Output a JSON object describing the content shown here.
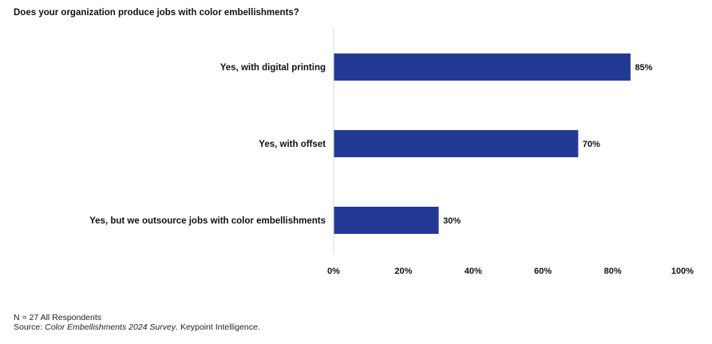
{
  "title": "Does your organization produce jobs with color embellishments?",
  "colors": {
    "bar": "#233A95",
    "axis": "#d9d9d9"
  },
  "chart_data": {
    "type": "bar",
    "orientation": "horizontal",
    "categories": [
      "Yes, with digital printing",
      "Yes, with offset",
      "Yes, but we outsource jobs with color embellishments"
    ],
    "values": [
      85,
      70,
      30
    ],
    "value_labels": [
      "85%",
      "70%",
      "30%"
    ],
    "xlim": [
      0,
      100
    ],
    "x_ticks": [
      0,
      20,
      40,
      60,
      80,
      100
    ],
    "x_tick_labels": [
      "0%",
      "20%",
      "40%",
      "60%",
      "80%",
      "100%"
    ],
    "grid": false,
    "legend": "none"
  },
  "footnote": {
    "n": "N = 27 All Respondents",
    "source_prefix": "Source: ",
    "source_italic": "Color Embellishments 2024 Survey",
    "source_suffix": ". Keypoint Intelligence."
  }
}
